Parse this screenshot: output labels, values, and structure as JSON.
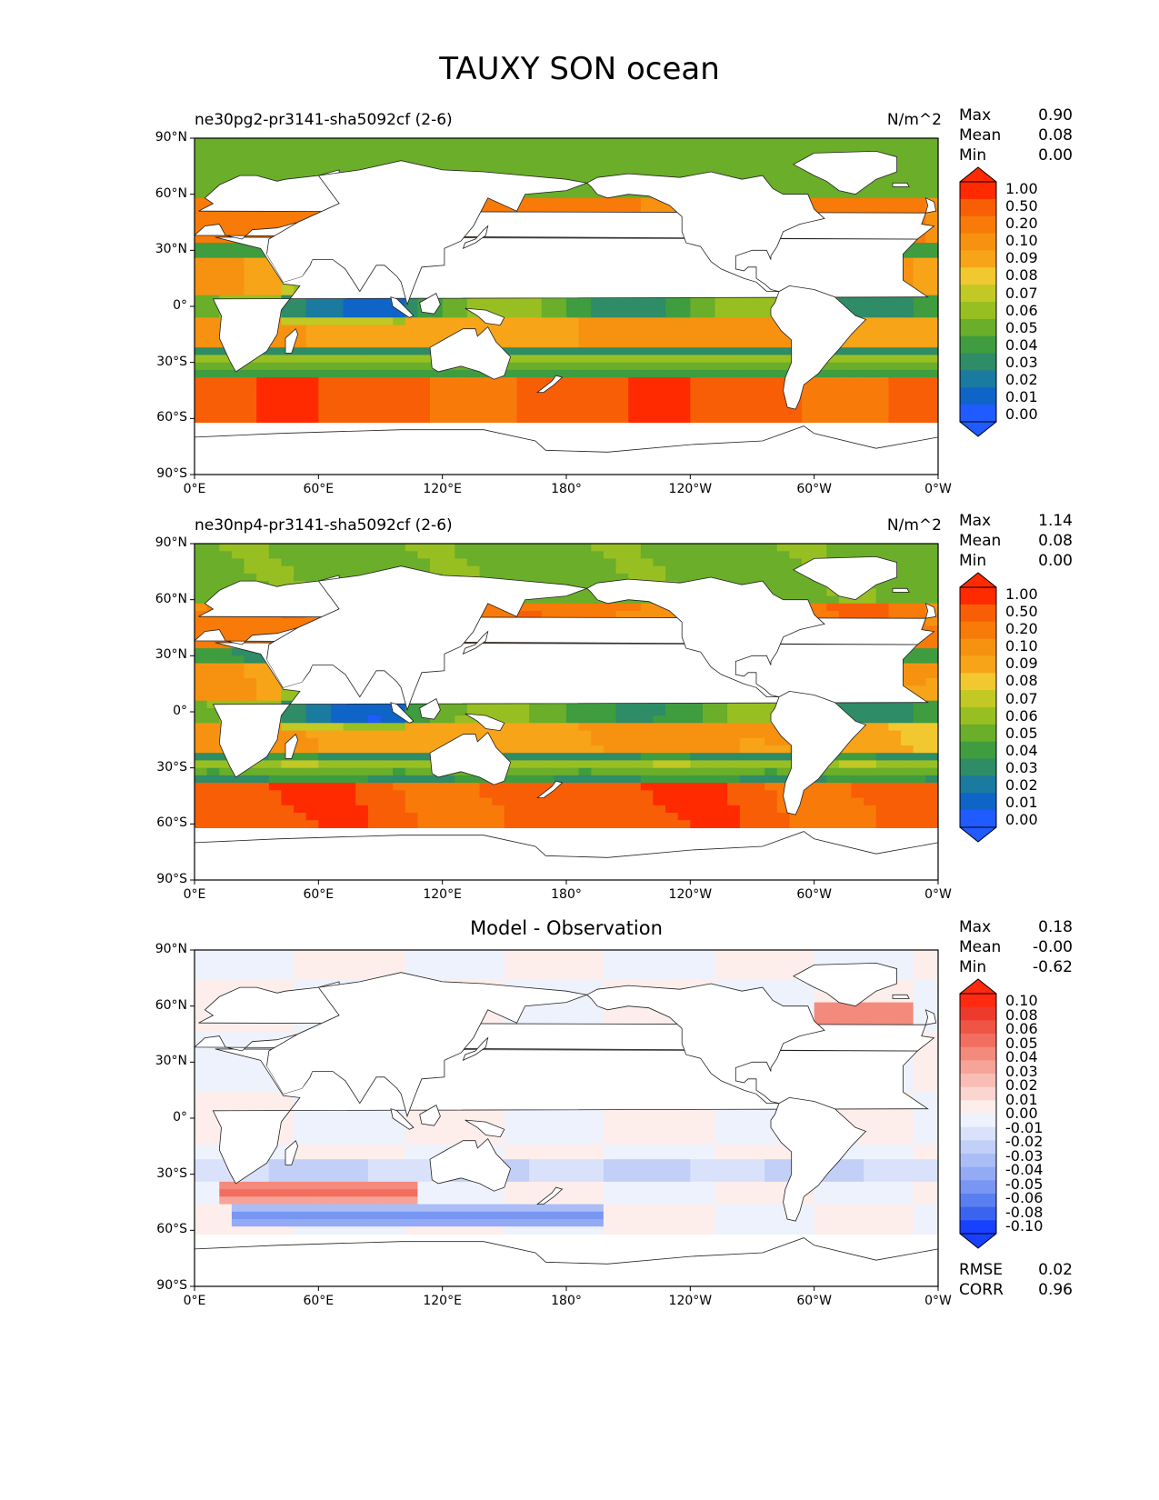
{
  "title": "TAUXY SON ocean",
  "colors": {
    "seq": [
      "#1f5bff",
      "#0f64c8",
      "#1a7aa0",
      "#2e8c66",
      "#3f9c3f",
      "#6aae2a",
      "#98bf22",
      "#c2c824",
      "#f2c830",
      "#f7a418",
      "#f79210",
      "#f87a08",
      "#f85e06",
      "#ff2a00"
    ],
    "div": [
      "#1840ff",
      "#3a64f0",
      "#5a7ff0",
      "#7896f2",
      "#93abf4",
      "#aabdf6",
      "#c2d0f8",
      "#d9e2fa",
      "#eef2fc",
      "#fdeeec",
      "#fbd5d0",
      "#f8bdb5",
      "#f6a398",
      "#f48a7c",
      "#f26e60",
      "#ef5445",
      "#ed3a2c",
      "#ff2a10"
    ],
    "land_edge": "#222222"
  },
  "panels": [
    {
      "id": "test",
      "title_left": "ne30pg2-pr3141-sha5092cf (2-6)",
      "title_center": "",
      "units": "N/m^2",
      "stats": [
        {
          "label": "Max",
          "value": "0.90"
        },
        {
          "label": "Mean",
          "value": "0.08"
        },
        {
          "label": "Min",
          "value": "0.00"
        }
      ],
      "colorbar_ticks": [
        "1.00",
        "0.50",
        "0.20",
        "0.10",
        "0.09",
        "0.08",
        "0.07",
        "0.06",
        "0.05",
        "0.04",
        "0.03",
        "0.02",
        "0.01",
        "0.00"
      ],
      "diagnostics": []
    },
    {
      "id": "ref",
      "title_left": "ne30np4-pr3141-sha5092cf (2-6)",
      "title_center": "",
      "units": "N/m^2",
      "stats": [
        {
          "label": "Max",
          "value": "1.14"
        },
        {
          "label": "Mean",
          "value": "0.08"
        },
        {
          "label": "Min",
          "value": "0.00"
        }
      ],
      "colorbar_ticks": [
        "1.00",
        "0.50",
        "0.20",
        "0.10",
        "0.09",
        "0.08",
        "0.07",
        "0.06",
        "0.05",
        "0.04",
        "0.03",
        "0.02",
        "0.01",
        "0.00"
      ],
      "diagnostics": []
    },
    {
      "id": "diff",
      "title_left": "",
      "title_center": "Model - Observation",
      "units": "",
      "stats": [
        {
          "label": "Max",
          "value": "0.18"
        },
        {
          "label": "Mean",
          "value": "-0.00"
        },
        {
          "label": "Min",
          "value": "-0.62"
        }
      ],
      "colorbar_ticks": [
        "0.10",
        "0.08",
        "0.06",
        "0.05",
        "0.04",
        "0.03",
        "0.02",
        "0.01",
        "0.00",
        "-0.01",
        "-0.02",
        "-0.03",
        "-0.04",
        "-0.05",
        "-0.06",
        "-0.08",
        "-0.10"
      ],
      "diagnostics": [
        {
          "label": "RMSE",
          "value": "0.02"
        },
        {
          "label": "CORR",
          "value": "0.96"
        }
      ]
    }
  ],
  "axes": {
    "xticks": [
      "0°E",
      "60°E",
      "120°E",
      "180°",
      "120°W",
      "60°W",
      "0°W"
    ],
    "yticks": [
      "90°N",
      "60°N",
      "30°N",
      "0°",
      "30°S",
      "60°S",
      "90°S"
    ]
  }
}
